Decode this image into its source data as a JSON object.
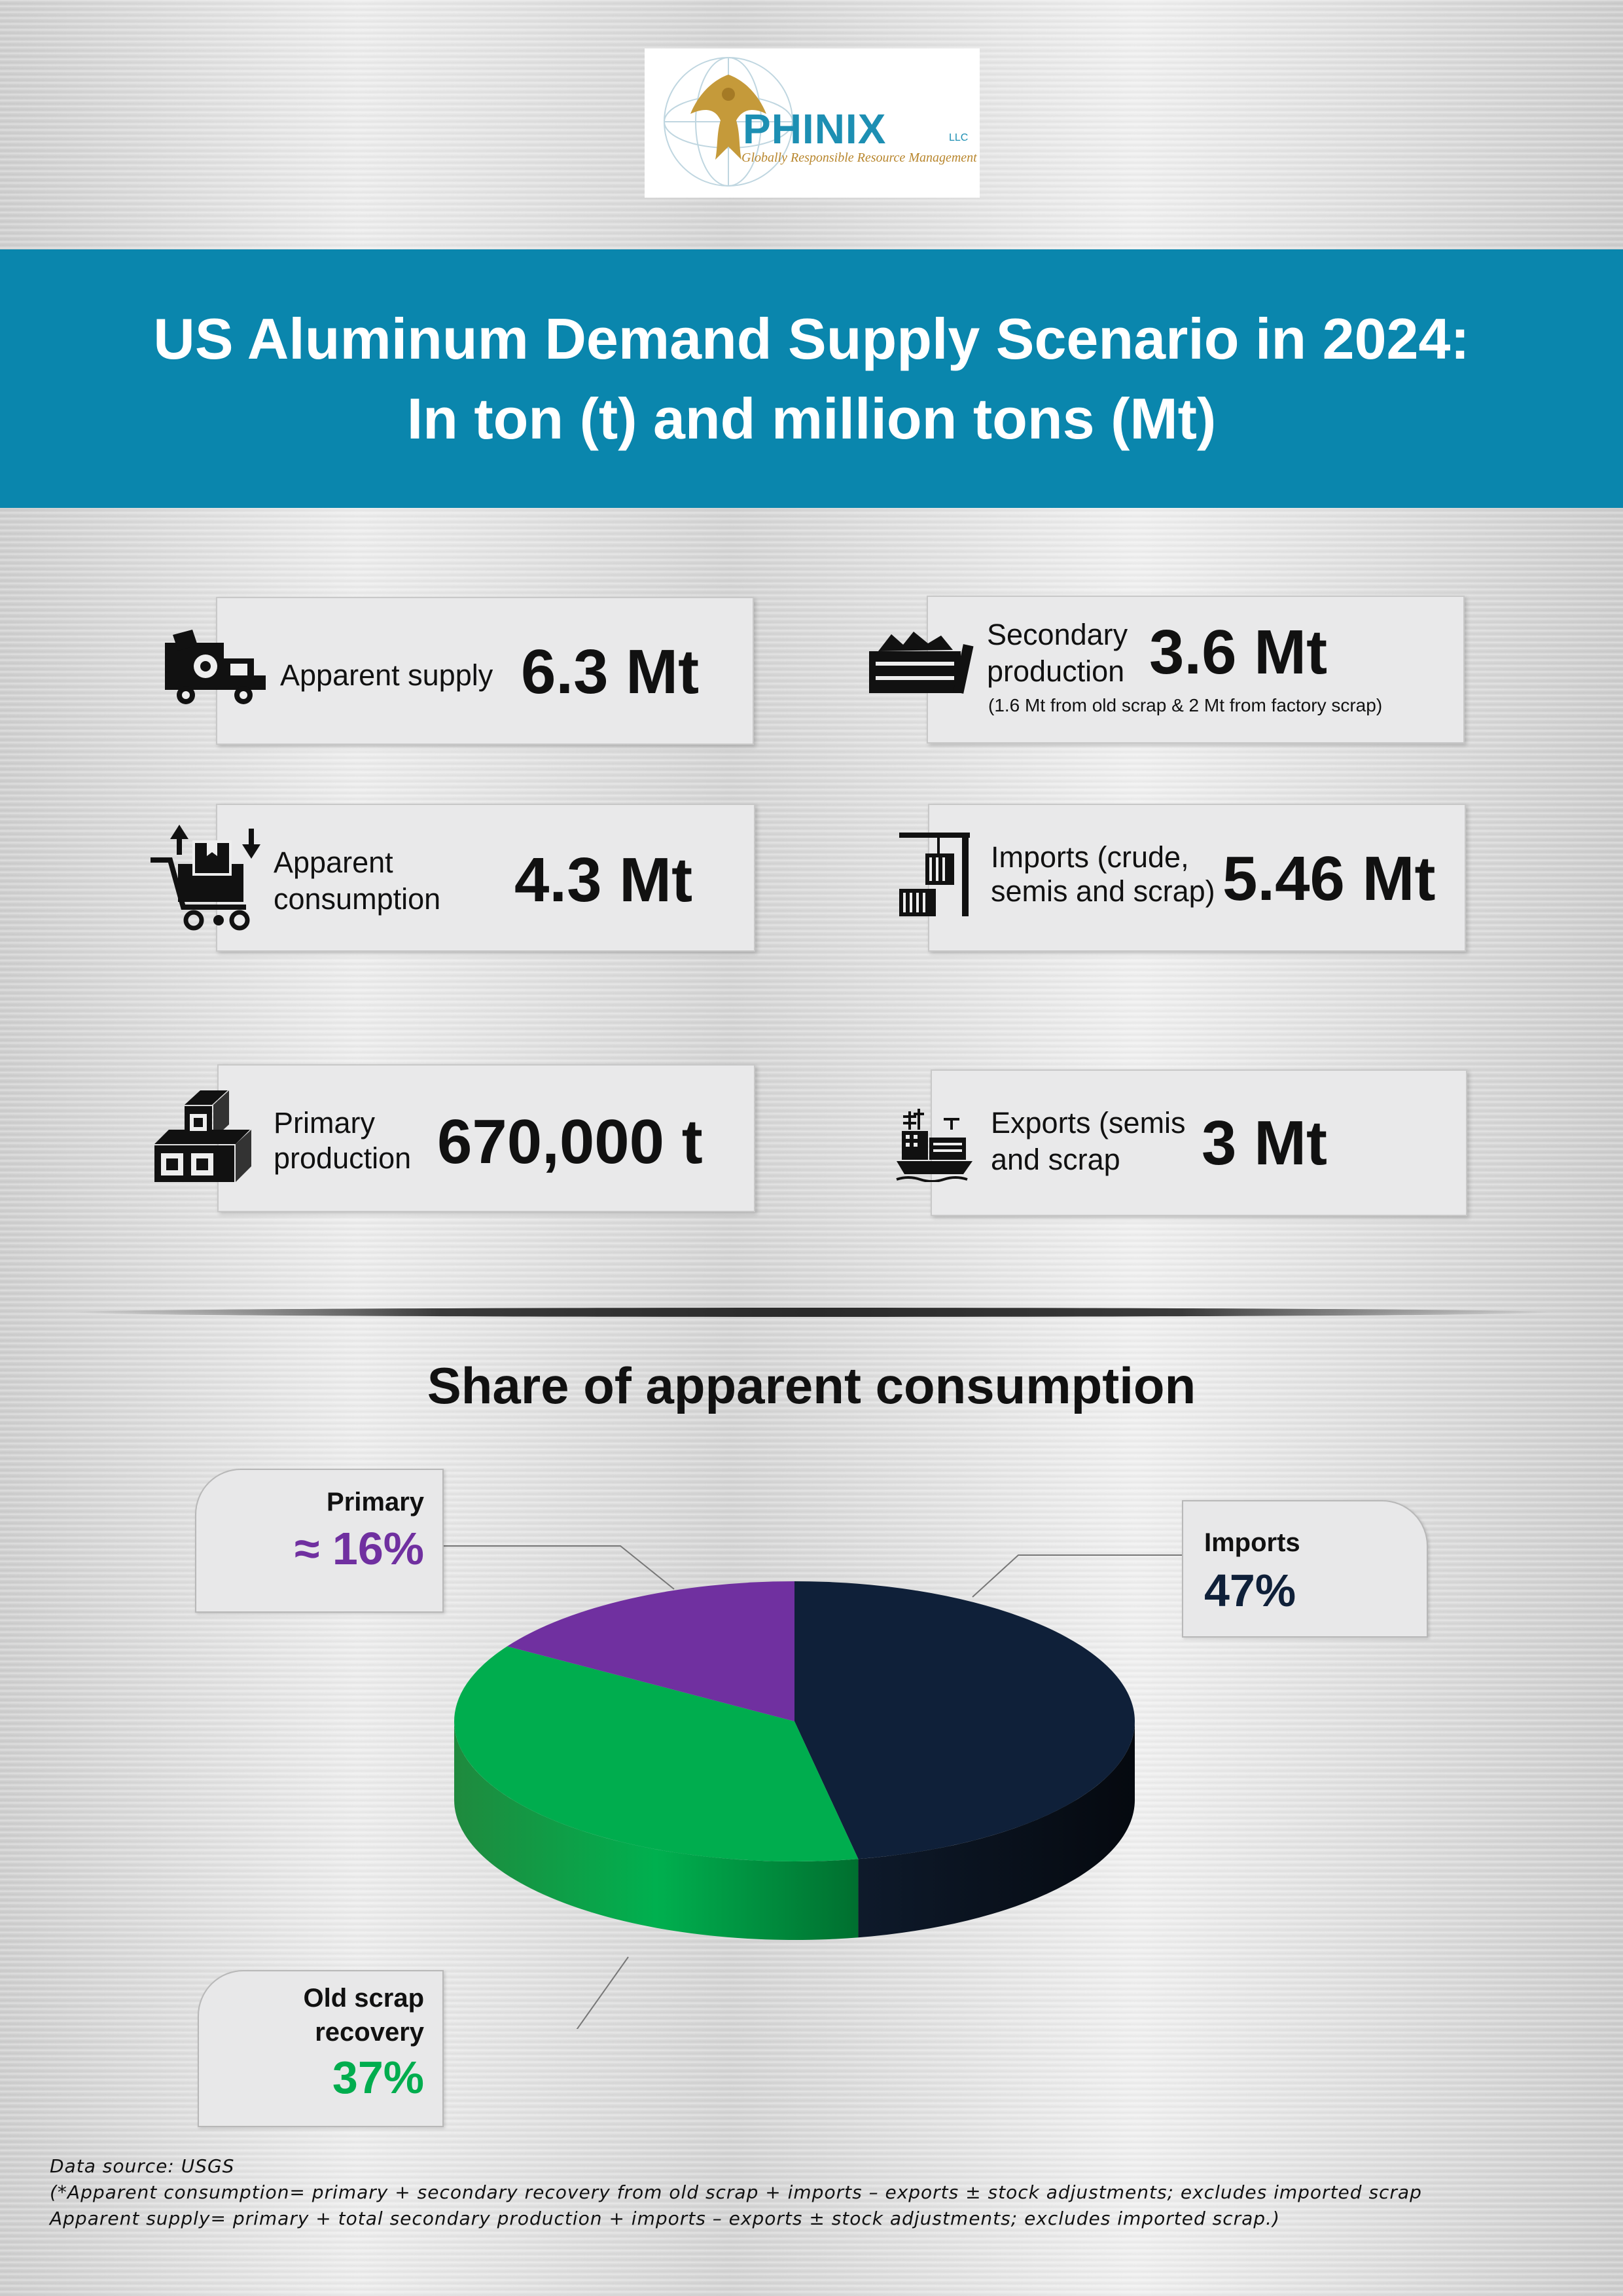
{
  "logo": {
    "name": "PHINIX",
    "suffix": "LLC",
    "tagline": "Globally Responsible Resource Management"
  },
  "header": {
    "title_line1": "US Aluminum Demand Supply Scenario in 2024:",
    "title_line2": "In ton (t) and million tons (Mt)"
  },
  "stats": {
    "apparent_supply": {
      "label": "Apparent supply",
      "value": "6.3 Mt",
      "icon": "truck-gear-icon"
    },
    "secondary_production": {
      "label1": "Secondary",
      "label2": "production",
      "value": "3.6 Mt",
      "note": "(1.6 Mt from old scrap & 2 Mt from factory scrap)",
      "icon": "scrap-crate-icon"
    },
    "apparent_consumption": {
      "label1": "Apparent",
      "label2": "consumption",
      "value": "4.3 Mt",
      "icon": "cart-box-icon"
    },
    "imports": {
      "label1": "Imports (crude,",
      "label2": "semis and scrap)",
      "value": "5.46 Mt",
      "icon": "crane-container-icon"
    },
    "primary_production": {
      "label1": "Primary",
      "label2": "production",
      "value": "670,000 t",
      "icon": "ingot-blocks-icon"
    },
    "exports": {
      "label1": "Exports (semis",
      "label2": "and scrap",
      "value": "3 Mt",
      "icon": "cargo-ship-icon"
    }
  },
  "chart_data": {
    "type": "pie",
    "title": "Share of apparent consumption",
    "slices": [
      {
        "label": "Imports",
        "display": "47%",
        "value": 47,
        "color": "#0f2039"
      },
      {
        "label": "Old scrap recovery",
        "label1": "Old scrap",
        "label2": "recovery",
        "display": "37%",
        "value": 37,
        "color": "#00ad4e"
      },
      {
        "label": "Primary",
        "display": "≈ 16%",
        "value": 16,
        "color": "#7030a0"
      }
    ]
  },
  "footer": {
    "source": "Data source: USGS",
    "note1": "(*Apparent consumption= primary + secondary recovery from old scrap + imports – exports ± stock adjustments; excludes imported scrap",
    "note2": "Apparent supply= primary + total secondary production + imports – exports ± stock adjustments; excludes imported scrap.)"
  }
}
